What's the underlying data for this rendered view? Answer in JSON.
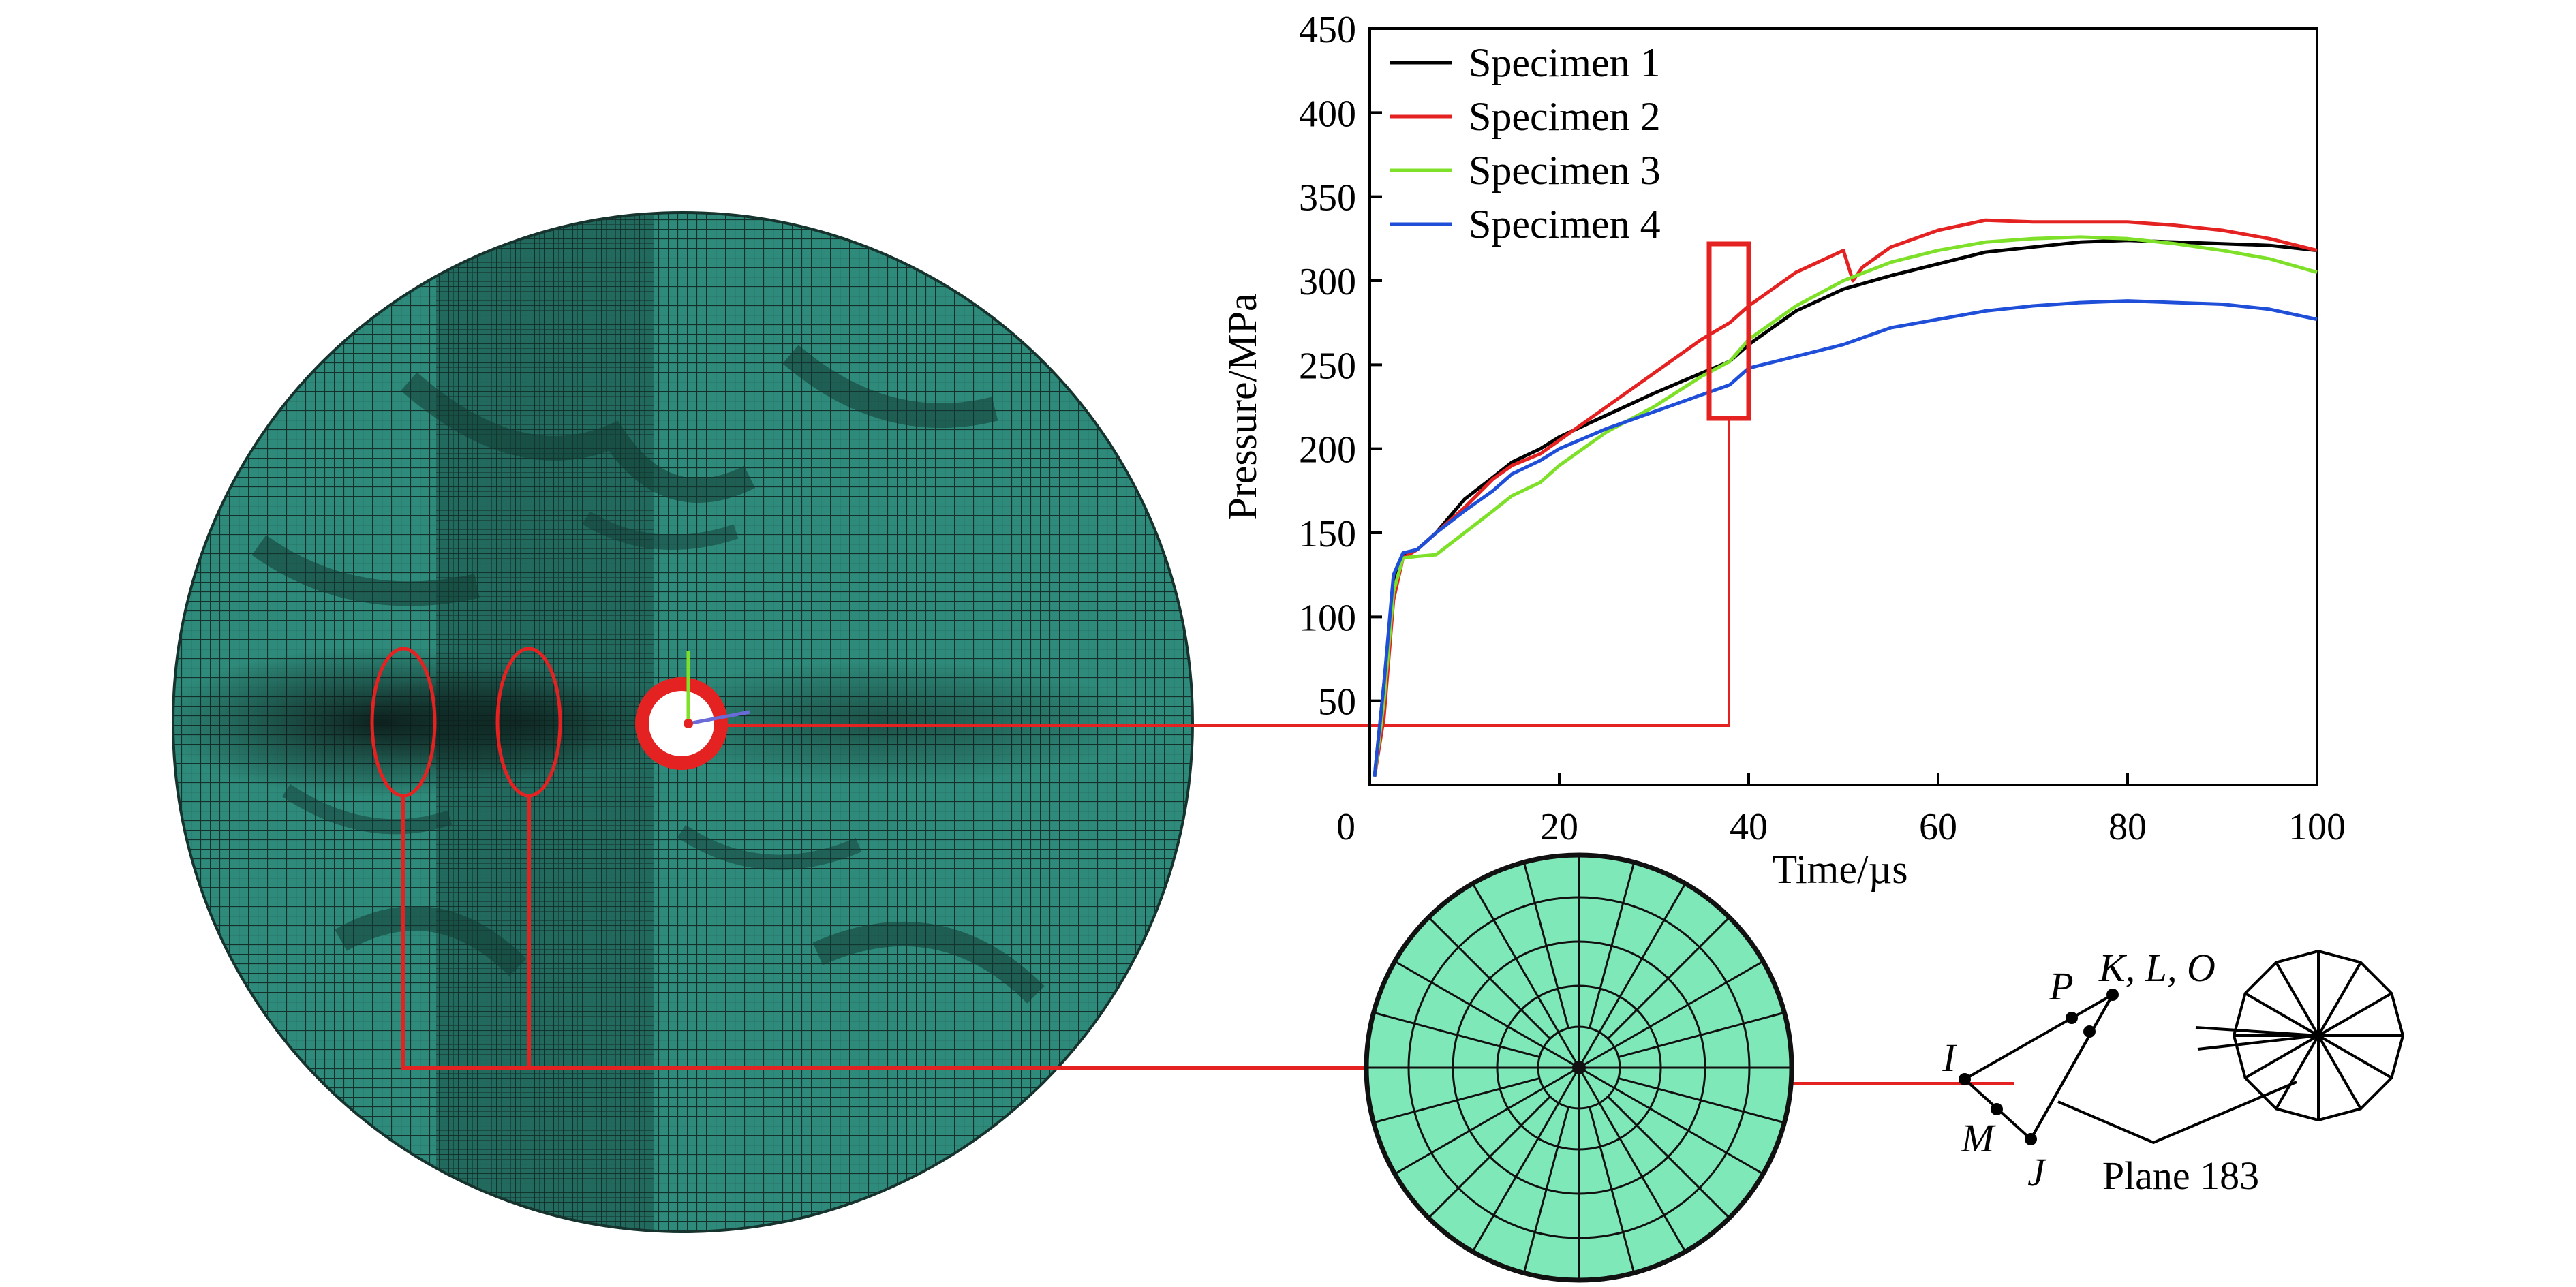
{
  "colors": {
    "mesh_fill": "#2e8a7a",
    "mesh_dark": "#16332e",
    "element_fill": "#7ee8b8",
    "highlight": "#e52222",
    "specimen_1": "#000000",
    "specimen_2": "#e52222",
    "specimen_3": "#7fe02a",
    "specimen_4": "#1f4fd8"
  },
  "chart_data": {
    "type": "line",
    "xlabel": "Time/µs",
    "ylabel": "Pressure/MPa",
    "xlim": [
      0,
      100
    ],
    "ylim": [
      0,
      450
    ],
    "x_ticks": [
      0,
      20,
      40,
      60,
      80,
      100
    ],
    "y_ticks": [
      50,
      100,
      150,
      200,
      250,
      300,
      350,
      400,
      450
    ],
    "legend_position": "top-left",
    "grid": false,
    "series": [
      {
        "name": "Specimen 1",
        "color": "#000000",
        "x": [
          0.5,
          1.5,
          2.5,
          3.5,
          5,
          7,
          10,
          13,
          15,
          18,
          20,
          25,
          30,
          35,
          38,
          40,
          45,
          50,
          55,
          60,
          65,
          70,
          75,
          80,
          85,
          90,
          95,
          100
        ],
        "y": [
          5,
          60,
          120,
          137,
          140,
          150,
          170,
          183,
          192,
          200,
          207,
          220,
          233,
          245,
          252,
          262,
          282,
          295,
          303,
          310,
          317,
          320,
          323,
          324,
          323,
          322,
          321,
          318
        ]
      },
      {
        "name": "Specimen 2",
        "color": "#e52222",
        "x": [
          0.5,
          1.5,
          2.5,
          3.5,
          5,
          7,
          10,
          13,
          15,
          18,
          20,
          25,
          30,
          35,
          38,
          40,
          45,
          50,
          51,
          52,
          55,
          60,
          65,
          70,
          75,
          80,
          85,
          90,
          95,
          100
        ],
        "y": [
          5,
          40,
          110,
          135,
          140,
          150,
          165,
          182,
          190,
          197,
          205,
          225,
          245,
          265,
          275,
          285,
          305,
          318,
          300,
          308,
          320,
          330,
          336,
          335,
          335,
          335,
          333,
          330,
          325,
          318
        ]
      },
      {
        "name": "Specimen 3",
        "color": "#7fe02a",
        "x": [
          0.5,
          1.5,
          2.5,
          3.5,
          5,
          7,
          10,
          13,
          15,
          18,
          20,
          25,
          30,
          35,
          38,
          40,
          45,
          50,
          55,
          60,
          65,
          70,
          75,
          80,
          85,
          90,
          95,
          100
        ],
        "y": [
          5,
          50,
          115,
          135,
          136,
          137,
          150,
          163,
          172,
          180,
          190,
          210,
          225,
          243,
          252,
          265,
          285,
          300,
          311,
          318,
          323,
          325,
          326,
          325,
          322,
          318,
          313,
          305
        ]
      },
      {
        "name": "Specimen 4",
        "color": "#1f4fd8",
        "x": [
          0.5,
          1.5,
          2.5,
          3.5,
          5,
          7,
          10,
          13,
          15,
          18,
          20,
          25,
          30,
          35,
          38,
          40,
          45,
          50,
          55,
          60,
          65,
          70,
          75,
          80,
          85,
          90,
          95,
          100
        ],
        "y": [
          5,
          60,
          125,
          138,
          140,
          150,
          163,
          175,
          185,
          193,
          200,
          212,
          222,
          232,
          238,
          248,
          255,
          262,
          272,
          277,
          282,
          285,
          287,
          288,
          287,
          286,
          283,
          277
        ]
      }
    ],
    "annotations": []
  },
  "element_diagram": {
    "node_labels": {
      "I": "I",
      "J": "J",
      "M": "M",
      "P": "P",
      "KLO": "K, L, O"
    },
    "plane_label": "Plane 183"
  }
}
